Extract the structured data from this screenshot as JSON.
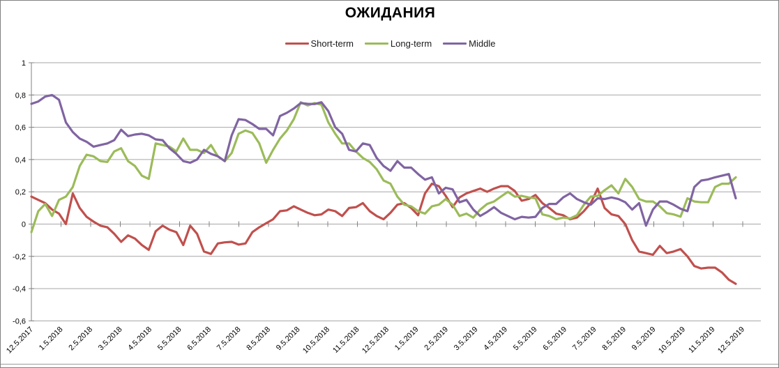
{
  "title": "ОЖИДАНИЯ",
  "chart_data": {
    "type": "line",
    "title": "ОЖИДАНИЯ",
    "legend_position": "top-center",
    "grid": true,
    "background_color": "#FFFFFF",
    "grid_color": "#A6A6A6",
    "axis_color": "#808080",
    "ylim": [
      -0.6,
      1
    ],
    "y_ticks": [
      {
        "label": "1",
        "value": 1
      },
      {
        "label": "0,8",
        "value": 0.8
      },
      {
        "label": "0,6",
        "value": 0.6
      },
      {
        "label": "0,4",
        "value": 0.4
      },
      {
        "label": "0,2",
        "value": 0.2
      },
      {
        "label": "0",
        "value": 0
      },
      {
        "label": "-0,2",
        "value": -0.2
      },
      {
        "label": "-0,4",
        "value": -0.4
      },
      {
        "label": "-0,6",
        "value": -0.6
      }
    ],
    "x_tick_labels": [
      "12.5.2017",
      "1.5.2018",
      "2.5.2018",
      "3.5.2018",
      "4.5.2018",
      "5.5.2018",
      "6.5.2018",
      "7.5.2018",
      "8.5.2018",
      "9.5.2018",
      "10.5.2018",
      "11.5.2018",
      "12.5.2018",
      "1.5.2019",
      "2.5.2019",
      "3.5.2019",
      "4.5.2019",
      "5.5.2019",
      "6.5.2019",
      "7.5.2019",
      "8.5.2019",
      "9.5.2019",
      "10.5.2019",
      "11.5.2019",
      "12.5.2019"
    ],
    "series": [
      {
        "name": "Short-term",
        "color": "#C0504D",
        "values": [
          0.17,
          0.15,
          0.13,
          0.09,
          0.065,
          0,
          0.19,
          0.1,
          0.045,
          0.015,
          -0.01,
          -0.02,
          -0.06,
          -0.11,
          -0.07,
          -0.09,
          -0.13,
          -0.16,
          -0.045,
          -0.01,
          -0.035,
          -0.05,
          -0.13,
          -0.01,
          -0.06,
          -0.17,
          -0.185,
          -0.12,
          -0.113,
          -0.11,
          -0.127,
          -0.12,
          -0.05,
          -0.02,
          0.005,
          0.03,
          0.08,
          0.085,
          0.11,
          0.09,
          0.07,
          0.055,
          0.06,
          0.09,
          0.08,
          0.05,
          0.1,
          0.105,
          0.13,
          0.08,
          0.05,
          0.03,
          0.07,
          0.12,
          0.13,
          0.1,
          0.055,
          0.19,
          0.25,
          0.235,
          0.175,
          0.105,
          0.165,
          0.19,
          0.205,
          0.22,
          0.2,
          0.22,
          0.235,
          0.235,
          0.205,
          0.145,
          0.155,
          0.18,
          0.13,
          0.1,
          0.065,
          0.055,
          0.03,
          0.04,
          0.08,
          0.13,
          0.22,
          0.1,
          0.06,
          0.05,
          0,
          -0.1,
          -0.17,
          -0.18,
          -0.19,
          -0.135,
          -0.18,
          -0.17,
          -0.155,
          -0.2,
          -0.26,
          -0.275,
          -0.27,
          -0.27,
          -0.3,
          -0.345,
          -0.37
        ]
      },
      {
        "name": "Long-term",
        "color": "#9BBB59",
        "values": [
          -0.05,
          0.08,
          0.125,
          0.05,
          0.15,
          0.17,
          0.23,
          0.36,
          0.43,
          0.42,
          0.39,
          0.385,
          0.45,
          0.47,
          0.39,
          0.36,
          0.3,
          0.28,
          0.5,
          0.49,
          0.48,
          0.45,
          0.53,
          0.46,
          0.46,
          0.44,
          0.49,
          0.42,
          0.39,
          0.44,
          0.56,
          0.58,
          0.565,
          0.5,
          0.38,
          0.46,
          0.53,
          0.58,
          0.65,
          0.755,
          0.735,
          0.75,
          0.74,
          0.63,
          0.56,
          0.5,
          0.5,
          0.45,
          0.41,
          0.385,
          0.34,
          0.27,
          0.25,
          0.17,
          0.12,
          0.11,
          0.08,
          0.065,
          0.11,
          0.12,
          0.155,
          0.12,
          0.05,
          0.065,
          0.04,
          0.09,
          0.125,
          0.14,
          0.17,
          0.2,
          0.17,
          0.175,
          0.165,
          0.16,
          0.06,
          0.05,
          0.03,
          0.04,
          0.035,
          0.055,
          0.12,
          0.17,
          0.175,
          0.21,
          0.24,
          0.19,
          0.28,
          0.23,
          0.155,
          0.14,
          0.14,
          0.11,
          0.068,
          0.06,
          0.046,
          0.16,
          0.14,
          0.135,
          0.135,
          0.23,
          0.25,
          0.25,
          0.29
        ]
      },
      {
        "name": "Middle",
        "color": "#8064A2",
        "values": [
          0.745,
          0.76,
          0.79,
          0.8,
          0.77,
          0.63,
          0.57,
          0.53,
          0.51,
          0.48,
          0.49,
          0.5,
          0.52,
          0.585,
          0.545,
          0.555,
          0.56,
          0.55,
          0.525,
          0.52,
          0.47,
          0.435,
          0.39,
          0.38,
          0.4,
          0.46,
          0.435,
          0.42,
          0.39,
          0.55,
          0.65,
          0.645,
          0.62,
          0.59,
          0.59,
          0.55,
          0.67,
          0.69,
          0.716,
          0.75,
          0.745,
          0.744,
          0.755,
          0.7,
          0.6,
          0.56,
          0.46,
          0.45,
          0.5,
          0.49,
          0.41,
          0.36,
          0.33,
          0.39,
          0.35,
          0.35,
          0.31,
          0.275,
          0.29,
          0.19,
          0.225,
          0.215,
          0.135,
          0.15,
          0.09,
          0.05,
          0.075,
          0.105,
          0.07,
          0.05,
          0.03,
          0.045,
          0.04,
          0.045,
          0.1,
          0.125,
          0.125,
          0.165,
          0.19,
          0.155,
          0.135,
          0.12,
          0.16,
          0.155,
          0.165,
          0.155,
          0.135,
          0.09,
          0.13,
          -0.01,
          0.09,
          0.14,
          0.14,
          0.12,
          0.095,
          0.08,
          0.23,
          0.27,
          0.277,
          0.29,
          0.3,
          0.31,
          0.16
        ]
      }
    ]
  }
}
